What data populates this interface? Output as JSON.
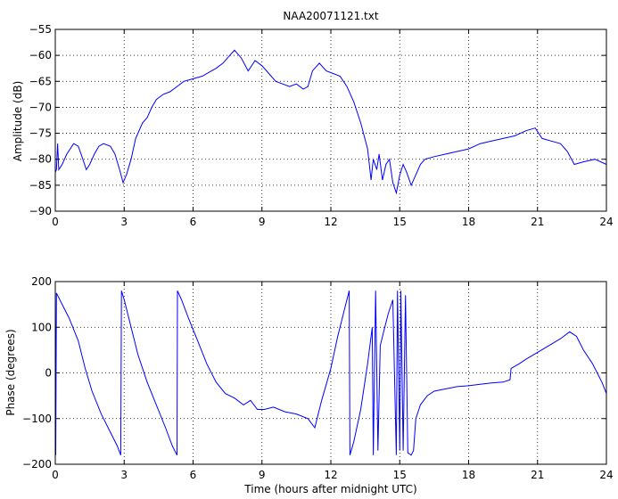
{
  "title": "NAA20071121.txt",
  "colors": {
    "line": "#0000ff",
    "axes": "#000000",
    "grid": "#000000",
    "background": "#ffffff"
  },
  "chart_data": [
    {
      "type": "line",
      "title": "NAA20071121.txt",
      "xlabel": "",
      "ylabel": "Amplitude (dB)",
      "xlim": [
        0,
        24
      ],
      "ylim": [
        -90,
        -55
      ],
      "xticks": [
        "0",
        "3",
        "6",
        "9",
        "12",
        "15",
        "18",
        "21",
        "24"
      ],
      "yticks": [
        "-90",
        "-85",
        "-80",
        "-75",
        "-70",
        "-65",
        "-60",
        "-55"
      ],
      "grid": true,
      "series": [
        {
          "points": [
            [
              0,
              -82.5
            ],
            [
              0.05,
              -82
            ],
            [
              0.1,
              -77
            ],
            [
              0.15,
              -82
            ],
            [
              0.3,
              -81
            ],
            [
              0.5,
              -79
            ],
            [
              0.8,
              -77
            ],
            [
              1.0,
              -77.5
            ],
            [
              1.2,
              -80
            ],
            [
              1.35,
              -82
            ],
            [
              1.5,
              -81
            ],
            [
              1.7,
              -79
            ],
            [
              1.9,
              -77.5
            ],
            [
              2.1,
              -77
            ],
            [
              2.4,
              -77.5
            ],
            [
              2.6,
              -79
            ],
            [
              2.8,
              -82
            ],
            [
              2.95,
              -84.5
            ],
            [
              3.1,
              -83
            ],
            [
              3.3,
              -80
            ],
            [
              3.5,
              -76
            ],
            [
              3.8,
              -73
            ],
            [
              4.0,
              -72
            ],
            [
              4.2,
              -70
            ],
            [
              4.4,
              -68.5
            ],
            [
              4.7,
              -67.5
            ],
            [
              5.0,
              -67
            ],
            [
              5.3,
              -66
            ],
            [
              5.6,
              -65
            ],
            [
              6.0,
              -64.5
            ],
            [
              6.4,
              -64
            ],
            [
              6.8,
              -63
            ],
            [
              7.0,
              -62.5
            ],
            [
              7.3,
              -61.5
            ],
            [
              7.5,
              -60.5
            ],
            [
              7.8,
              -59
            ],
            [
              8.1,
              -60.5
            ],
            [
              8.4,
              -63
            ],
            [
              8.7,
              -61
            ],
            [
              9.0,
              -62
            ],
            [
              9.3,
              -63.5
            ],
            [
              9.6,
              -65
            ],
            [
              9.9,
              -65.5
            ],
            [
              10.2,
              -66
            ],
            [
              10.5,
              -65.5
            ],
            [
              10.8,
              -66.5
            ],
            [
              11.0,
              -66
            ],
            [
              11.2,
              -63
            ],
            [
              11.5,
              -61.5
            ],
            [
              11.8,
              -63
            ],
            [
              12.1,
              -63.5
            ],
            [
              12.4,
              -64
            ],
            [
              12.7,
              -66
            ],
            [
              13.0,
              -69
            ],
            [
              13.3,
              -73
            ],
            [
              13.6,
              -78
            ],
            [
              13.75,
              -84
            ],
            [
              13.85,
              -80
            ],
            [
              14.0,
              -82
            ],
            [
              14.1,
              -79
            ],
            [
              14.25,
              -84
            ],
            [
              14.4,
              -81
            ],
            [
              14.55,
              -80
            ],
            [
              14.7,
              -84.5
            ],
            [
              14.85,
              -86.5
            ],
            [
              15.0,
              -83
            ],
            [
              15.15,
              -81
            ],
            [
              15.3,
              -82.5
            ],
            [
              15.5,
              -85
            ],
            [
              15.7,
              -83
            ],
            [
              15.9,
              -81
            ],
            [
              16.1,
              -80
            ],
            [
              16.5,
              -79.5
            ],
            [
              17.0,
              -79
            ],
            [
              17.5,
              -78.5
            ],
            [
              18.0,
              -78
            ],
            [
              18.5,
              -77
            ],
            [
              19.0,
              -76.5
            ],
            [
              19.5,
              -76
            ],
            [
              20.0,
              -75.5
            ],
            [
              20.5,
              -74.5
            ],
            [
              20.9,
              -74
            ],
            [
              21.2,
              -76
            ],
            [
              21.6,
              -76.5
            ],
            [
              22.0,
              -77
            ],
            [
              22.3,
              -78.5
            ],
            [
              22.6,
              -81
            ],
            [
              23.0,
              -80.5
            ],
            [
              23.5,
              -80
            ],
            [
              24.0,
              -81
            ]
          ]
        }
      ]
    },
    {
      "type": "line",
      "title": "",
      "xlabel": "Time (hours after midnight UTC)",
      "ylabel": "Phase (degrees)",
      "xlim": [
        0,
        24
      ],
      "ylim": [
        -200,
        200
      ],
      "xticks": [
        "0",
        "3",
        "6",
        "9",
        "12",
        "15",
        "18",
        "21",
        "24"
      ],
      "yticks": [
        "-200",
        "-100",
        "0",
        "100",
        "200"
      ],
      "grid": true,
      "series": [
        {
          "points": [
            [
              0,
              180
            ],
            [
              0.02,
              -180
            ],
            [
              0.05,
              175
            ],
            [
              0.3,
              150
            ],
            [
              0.6,
              120
            ],
            [
              1.0,
              70
            ],
            [
              1.3,
              10
            ],
            [
              1.6,
              -40
            ],
            [
              2.0,
              -90
            ],
            [
              2.4,
              -130
            ],
            [
              2.7,
              -160
            ],
            [
              2.85,
              -180
            ],
            [
              2.88,
              180
            ],
            [
              3.0,
              160
            ],
            [
              3.3,
              100
            ],
            [
              3.6,
              40
            ],
            [
              4.0,
              -20
            ],
            [
              4.4,
              -70
            ],
            [
              4.8,
              -120
            ],
            [
              5.1,
              -160
            ],
            [
              5.3,
              -180
            ],
            [
              5.32,
              180
            ],
            [
              5.5,
              160
            ],
            [
              5.8,
              120
            ],
            [
              6.2,
              70
            ],
            [
              6.6,
              20
            ],
            [
              7.0,
              -20
            ],
            [
              7.4,
              -45
            ],
            [
              7.8,
              -55
            ],
            [
              8.2,
              -70
            ],
            [
              8.5,
              -60
            ],
            [
              8.8,
              -80
            ],
            [
              9.1,
              -80
            ],
            [
              9.5,
              -75
            ],
            [
              10.0,
              -85
            ],
            [
              10.5,
              -90
            ],
            [
              11.0,
              -100
            ],
            [
              11.3,
              -120
            ],
            [
              11.6,
              -60
            ],
            [
              12.0,
              10
            ],
            [
              12.3,
              80
            ],
            [
              12.6,
              140
            ],
            [
              12.8,
              180
            ],
            [
              12.83,
              -180
            ],
            [
              13.0,
              -150
            ],
            [
              13.3,
              -80
            ],
            [
              13.6,
              20
            ],
            [
              13.8,
              100
            ],
            [
              13.85,
              -180
            ],
            [
              13.95,
              180
            ],
            [
              14.05,
              -170
            ],
            [
              14.15,
              60
            ],
            [
              14.3,
              90
            ],
            [
              14.5,
              130
            ],
            [
              14.7,
              160
            ],
            [
              14.85,
              -180
            ],
            [
              14.9,
              180
            ],
            [
              15.0,
              -170
            ],
            [
              15.05,
              180
            ],
            [
              15.15,
              -170
            ],
            [
              15.25,
              170
            ],
            [
              15.35,
              -175
            ],
            [
              15.5,
              -180
            ],
            [
              15.6,
              -170
            ],
            [
              15.7,
              -100
            ],
            [
              15.9,
              -70
            ],
            [
              16.2,
              -50
            ],
            [
              16.5,
              -40
            ],
            [
              17.0,
              -35
            ],
            [
              17.5,
              -30
            ],
            [
              18.0,
              -28
            ],
            [
              18.5,
              -25
            ],
            [
              19.0,
              -22
            ],
            [
              19.5,
              -20
            ],
            [
              19.8,
              -15
            ],
            [
              19.85,
              10
            ],
            [
              20.2,
              20
            ],
            [
              20.5,
              30
            ],
            [
              21.0,
              45
            ],
            [
              21.5,
              60
            ],
            [
              22.0,
              75
            ],
            [
              22.4,
              90
            ],
            [
              22.7,
              80
            ],
            [
              23.0,
              50
            ],
            [
              23.4,
              20
            ],
            [
              23.8,
              -20
            ],
            [
              24.0,
              -45
            ]
          ]
        }
      ]
    }
  ]
}
